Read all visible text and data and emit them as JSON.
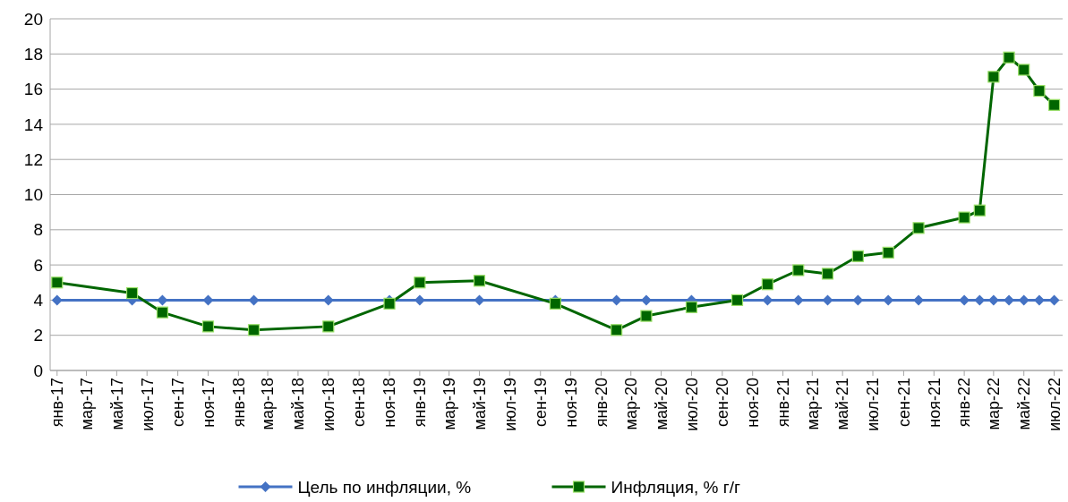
{
  "chart_data": {
    "type": "line",
    "x": [
      "2017-01",
      "2017-06",
      "2017-08",
      "2017-11",
      "2018-02",
      "2018-07",
      "2018-11",
      "2019-01",
      "2019-05",
      "2019-10",
      "2020-02",
      "2020-04",
      "2020-07",
      "2020-10",
      "2020-12",
      "2021-02",
      "2021-04",
      "2021-06",
      "2021-08",
      "2021-10",
      "2022-01",
      "2022-02",
      "2022-03",
      "2022-04",
      "2022-05",
      "2022-06",
      "2022-07"
    ],
    "series": [
      {
        "name": "Цель по инфляции, %",
        "color": "#4472c4",
        "marker": "diamond",
        "values": [
          4,
          4,
          4,
          4,
          4,
          4,
          4,
          4,
          4,
          4,
          4,
          4,
          4,
          4,
          4,
          4,
          4,
          4,
          4,
          4,
          4,
          4,
          4,
          4,
          4,
          4,
          4
        ]
      },
      {
        "name": "Инфляция, % г/г",
        "color": "#006600",
        "marker": "square",
        "values": [
          5.0,
          4.4,
          3.3,
          2.5,
          2.3,
          2.5,
          3.8,
          5.0,
          5.1,
          3.8,
          2.3,
          3.1,
          3.6,
          4.0,
          4.9,
          5.7,
          5.5,
          6.5,
          6.7,
          8.1,
          8.7,
          9.1,
          16.7,
          17.8,
          17.1,
          15.9,
          15.1
        ]
      }
    ],
    "xlim": [
      "2016-12-18",
      "2022-07-18"
    ],
    "xticks": [
      {
        "value": "2017-01",
        "label": "янв-17"
      },
      {
        "value": "2017-03",
        "label": "мар-17"
      },
      {
        "value": "2017-05",
        "label": "май-17"
      },
      {
        "value": "2017-07",
        "label": "июл-17"
      },
      {
        "value": "2017-09",
        "label": "сен-17"
      },
      {
        "value": "2017-11",
        "label": "ноя-17"
      },
      {
        "value": "2018-01",
        "label": "янв-18"
      },
      {
        "value": "2018-03",
        "label": "мар-18"
      },
      {
        "value": "2018-05",
        "label": "май-18"
      },
      {
        "value": "2018-07",
        "label": "июл-18"
      },
      {
        "value": "2018-09",
        "label": "сен-18"
      },
      {
        "value": "2018-11",
        "label": "ноя-18"
      },
      {
        "value": "2019-01",
        "label": "янв-19"
      },
      {
        "value": "2019-03",
        "label": "мар-19"
      },
      {
        "value": "2019-05",
        "label": "май-19"
      },
      {
        "value": "2019-07",
        "label": "июл-19"
      },
      {
        "value": "2019-09",
        "label": "сен-19"
      },
      {
        "value": "2019-11",
        "label": "ноя-19"
      },
      {
        "value": "2020-01",
        "label": "янв-20"
      },
      {
        "value": "2020-03",
        "label": "мар-20"
      },
      {
        "value": "2020-05",
        "label": "май-20"
      },
      {
        "value": "2020-07",
        "label": "июл-20"
      },
      {
        "value": "2020-09",
        "label": "сен-20"
      },
      {
        "value": "2020-11",
        "label": "ноя-20"
      },
      {
        "value": "2021-01",
        "label": "янв-21"
      },
      {
        "value": "2021-03",
        "label": "мар-21"
      },
      {
        "value": "2021-05",
        "label": "май-21"
      },
      {
        "value": "2021-07",
        "label": "июл-21"
      },
      {
        "value": "2021-09",
        "label": "сен-21"
      },
      {
        "value": "2021-11",
        "label": "ноя-21"
      },
      {
        "value": "2022-01",
        "label": "янв-22"
      },
      {
        "value": "2022-03",
        "label": "мар-22"
      },
      {
        "value": "2022-05",
        "label": "май-22"
      },
      {
        "value": "2022-07",
        "label": "июл-22"
      }
    ],
    "ylim": [
      0,
      20
    ],
    "yticks": [
      0,
      2,
      4,
      6,
      8,
      10,
      12,
      14,
      16,
      18,
      20
    ],
    "grid": "y",
    "legend": "bottom",
    "line_style": "solid"
  }
}
